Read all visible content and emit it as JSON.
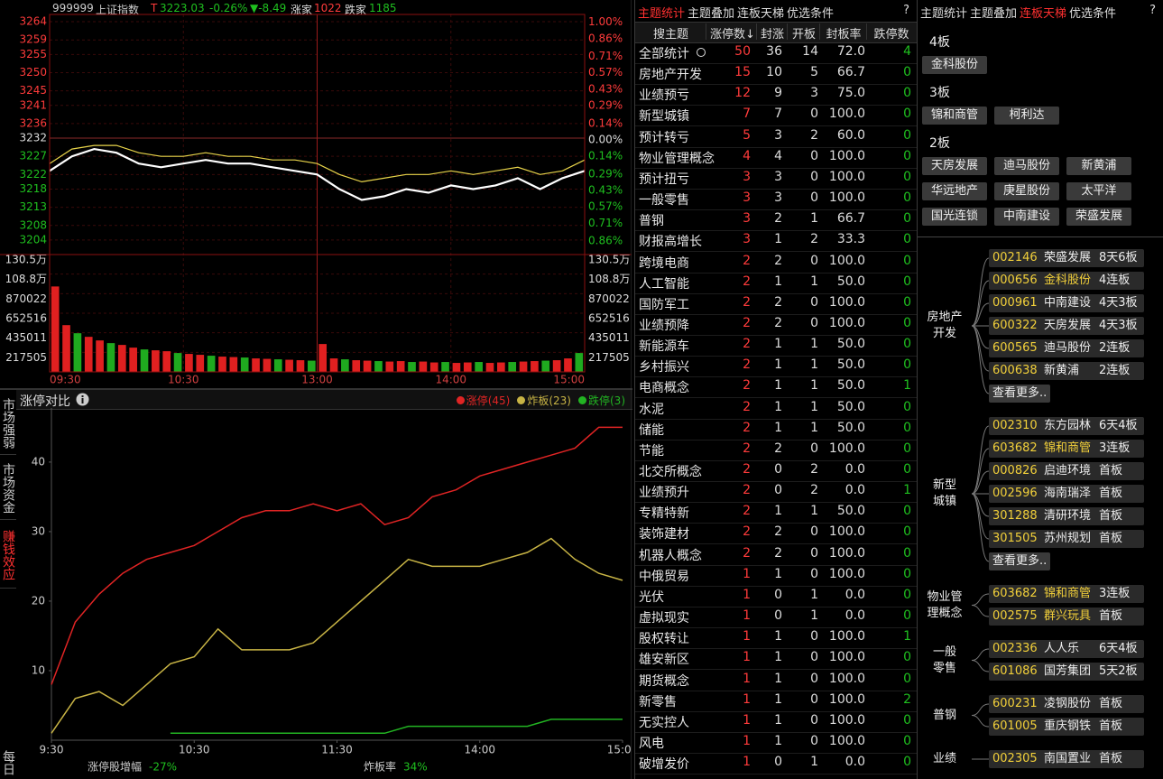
{
  "intraday": {
    "type": "line",
    "code": "999999",
    "name": "上证指数",
    "flag": "T",
    "price": "3223.03",
    "change_pct": "-0.26%",
    "change": "▼-8.49",
    "up_label": "涨家",
    "up_count": "1022",
    "down_label": "跌家",
    "down_count": "1185",
    "x": [
      0,
      10,
      20,
      30,
      40,
      50,
      60,
      70,
      80,
      90,
      100,
      110,
      120,
      130,
      140,
      150,
      160,
      170,
      180,
      190,
      200,
      210,
      220,
      230,
      240
    ],
    "xlim": [
      0,
      240
    ],
    "xticks": [
      {
        "value": 0,
        "label": "09:30"
      },
      {
        "value": 60,
        "label": "10:30"
      },
      {
        "value": 120,
        "label": "13:00"
      },
      {
        "value": 180,
        "label": "14:00"
      },
      {
        "value": 240,
        "label": "15:00"
      }
    ],
    "ylim": [
      3200,
      3266
    ],
    "yticks": [
      3264,
      3259,
      3255,
      3250,
      3245,
      3241,
      3236,
      3232,
      3227,
      3222,
      3218,
      3213,
      3208,
      3204
    ],
    "y2lim": [
      -0.975,
      1.067
    ],
    "y2ticks": [
      {
        "value": 1.0,
        "label": "1.00%"
      },
      {
        "value": 0.86,
        "label": "0.86%"
      },
      {
        "value": 0.71,
        "label": "0.71%"
      },
      {
        "value": 0.57,
        "label": "0.57%"
      },
      {
        "value": 0.43,
        "label": "0.43%"
      },
      {
        "value": 0.29,
        "label": "0.29%"
      },
      {
        "value": 0.14,
        "label": "0.14%"
      },
      {
        "value": 0,
        "label": "0.00%"
      },
      {
        "value": -0.14,
        "label": "0.14%"
      },
      {
        "value": -0.29,
        "label": "0.29%"
      },
      {
        "value": -0.43,
        "label": "0.43%"
      },
      {
        "value": -0.57,
        "label": "0.57%"
      },
      {
        "value": -0.71,
        "label": "0.71%"
      },
      {
        "value": -0.86,
        "label": "0.86%"
      }
    ],
    "series": [
      {
        "color": "#ffffff",
        "values": [
          3223,
          3227,
          3229,
          3228,
          3225,
          3224,
          3225,
          3226,
          3225,
          3225,
          3224,
          3223,
          3222,
          3218,
          3215,
          3216,
          3218,
          3217,
          3219,
          3218,
          3219,
          3221,
          3218,
          3221,
          3223
        ]
      },
      {
        "color": "#e8d44a",
        "values": [
          3225,
          3229,
          3230,
          3230,
          3228,
          3227,
          3227,
          3228,
          3227,
          3227,
          3226,
          3226,
          3225,
          3222,
          3220,
          3221,
          3222,
          3222,
          3223,
          3222,
          3223,
          3224,
          3222,
          3223,
          3226
        ]
      }
    ],
    "volume": {
      "type": "bar",
      "colors": [
        "#e02020",
        "#e02020",
        "#1faa1f"
      ],
      "values": [
        950000,
        520000,
        430000,
        390000,
        350000,
        320000,
        300000,
        270000,
        250000,
        240000,
        230000,
        210000,
        200000,
        190000,
        180000,
        170000,
        165000,
        160000,
        150000,
        145000,
        140000,
        135000,
        130000,
        125000,
        310000,
        150000,
        140000,
        130000,
        125000,
        120000,
        115000,
        120000,
        110000,
        115000,
        105000,
        110000,
        100000,
        105000,
        110000,
        100000,
        105000,
        110000,
        115000,
        120000,
        125000,
        130000,
        150000,
        210000
      ],
      "ylim": [
        0,
        1305030
      ],
      "yticks": [
        {
          "value": 1305030,
          "label": "130.5万"
        },
        {
          "value": 1087525,
          "label": "108.8万"
        },
        870022,
        652516,
        435011,
        217505
      ]
    }
  },
  "side_tabs": {
    "items": [
      "市场强弱",
      "市场资金",
      "赚钱效应",
      "每日"
    ],
    "active": 2
  },
  "limit_chart": {
    "type": "line",
    "title": "涨停对比",
    "x": [
      0,
      10,
      20,
      30,
      40,
      50,
      60,
      70,
      80,
      90,
      100,
      110,
      120,
      130,
      140,
      150,
      160,
      170,
      180,
      190,
      200,
      210,
      220,
      230,
      240
    ],
    "xlim": [
      0,
      240
    ],
    "xticks": [
      {
        "value": 0,
        "label": "9:30"
      },
      {
        "value": 60,
        "label": "10:30"
      },
      {
        "value": 120,
        "label": "11:30"
      },
      {
        "value": 180,
        "label": "14:00"
      },
      {
        "value": 240,
        "label": "15:00"
      }
    ],
    "ylim": [
      0,
      47
    ],
    "yticks": [
      10,
      20,
      30,
      40
    ],
    "series": [
      {
        "name": "涨停(45)",
        "color": "#e02424",
        "values": [
          8,
          17,
          21,
          24,
          26,
          27,
          28,
          30,
          32,
          33,
          33,
          34,
          33,
          34,
          31,
          32,
          35,
          36,
          38,
          39,
          40,
          41,
          42,
          45,
          45
        ]
      },
      {
        "name": "炸板(23)",
        "color": "#c8b445",
        "values": [
          1,
          6,
          7,
          5,
          8,
          11,
          12,
          16,
          13,
          13,
          13,
          14,
          17,
          20,
          23,
          26,
          25,
          25,
          25,
          26,
          27,
          29,
          26,
          24,
          23
        ]
      },
      {
        "name": "跌停(3)",
        "color": "#22b422",
        "values": [
          null,
          null,
          null,
          null,
          null,
          1,
          1,
          1,
          1,
          1,
          1,
          1,
          1,
          1,
          1,
          2,
          2,
          2,
          2,
          2,
          2,
          3,
          3,
          3,
          3
        ]
      }
    ],
    "footer": [
      {
        "label": "涨停股增幅",
        "value": "-27%"
      },
      {
        "label": "炸板率",
        "value": "34%"
      }
    ]
  },
  "table": {
    "tabs": [
      "主题统计",
      "主题叠加",
      "连板天梯",
      "优选条件"
    ],
    "active": 0,
    "help": "?",
    "header": [
      "搜主题",
      "涨停数↓",
      "封涨",
      "开板",
      "封板率",
      "跌停数"
    ],
    "rows": [
      [
        "全部统计",
        "50",
        "36",
        "14",
        "72.0",
        "4"
      ],
      [
        "房地产开发",
        "15",
        "10",
        "5",
        "66.7",
        "0"
      ],
      [
        "业绩预亏",
        "12",
        "9",
        "3",
        "75.0",
        "0"
      ],
      [
        "新型城镇",
        "7",
        "7",
        "0",
        "100.0",
        "0"
      ],
      [
        "预计转亏",
        "5",
        "3",
        "2",
        "60.0",
        "0"
      ],
      [
        "物业管理概念",
        "4",
        "4",
        "0",
        "100.0",
        "0"
      ],
      [
        "预计扭亏",
        "3",
        "3",
        "0",
        "100.0",
        "0"
      ],
      [
        "一般零售",
        "3",
        "3",
        "0",
        "100.0",
        "0"
      ],
      [
        "普钢",
        "3",
        "2",
        "1",
        "66.7",
        "0"
      ],
      [
        "财报高增长",
        "3",
        "1",
        "2",
        "33.3",
        "0"
      ],
      [
        "跨境电商",
        "2",
        "2",
        "0",
        "100.0",
        "0"
      ],
      [
        "人工智能",
        "2",
        "1",
        "1",
        "50.0",
        "0"
      ],
      [
        "国防军工",
        "2",
        "2",
        "0",
        "100.0",
        "0"
      ],
      [
        "业绩预降",
        "2",
        "2",
        "0",
        "100.0",
        "0"
      ],
      [
        "新能源车",
        "2",
        "1",
        "1",
        "50.0",
        "0"
      ],
      [
        "乡村振兴",
        "2",
        "1",
        "1",
        "50.0",
        "0"
      ],
      [
        "电商概念",
        "2",
        "1",
        "1",
        "50.0",
        "1"
      ],
      [
        "水泥",
        "2",
        "1",
        "1",
        "50.0",
        "0"
      ],
      [
        "储能",
        "2",
        "1",
        "1",
        "50.0",
        "0"
      ],
      [
        "节能",
        "2",
        "2",
        "0",
        "100.0",
        "0"
      ],
      [
        "北交所概念",
        "2",
        "0",
        "2",
        "0.0",
        "0"
      ],
      [
        "业绩预升",
        "2",
        "0",
        "2",
        "0.0",
        "1"
      ],
      [
        "专精特新",
        "2",
        "1",
        "1",
        "50.0",
        "0"
      ],
      [
        "装饰建材",
        "2",
        "2",
        "0",
        "100.0",
        "0"
      ],
      [
        "机器人概念",
        "2",
        "2",
        "0",
        "100.0",
        "0"
      ],
      [
        "中俄贸易",
        "1",
        "1",
        "0",
        "100.0",
        "0"
      ],
      [
        "光伏",
        "1",
        "0",
        "1",
        "0.0",
        "0"
      ],
      [
        "虚拟现实",
        "1",
        "0",
        "1",
        "0.0",
        "0"
      ],
      [
        "股权转让",
        "1",
        "1",
        "0",
        "100.0",
        "1"
      ],
      [
        "雄安新区",
        "1",
        "1",
        "0",
        "100.0",
        "0"
      ],
      [
        "期货概念",
        "1",
        "1",
        "0",
        "100.0",
        "0"
      ],
      [
        "新零售",
        "1",
        "1",
        "0",
        "100.0",
        "2"
      ],
      [
        "无实控人",
        "1",
        "1",
        "0",
        "100.0",
        "0"
      ],
      [
        "风电",
        "1",
        "1",
        "0",
        "100.0",
        "0"
      ],
      [
        "破增发价",
        "1",
        "0",
        "1",
        "0.0",
        "0"
      ]
    ]
  },
  "ladder": {
    "tabs": [
      "主题统计",
      "主题叠加",
      "连板天梯",
      "优选条件"
    ],
    "active": 2,
    "help": "?",
    "levels": [
      {
        "label": "4板",
        "stocks": [
          "金科股份"
        ]
      },
      {
        "label": "3板",
        "stocks": [
          "锦和商管",
          "柯利达"
        ]
      },
      {
        "label": "2板",
        "stocks": [
          "天房发展",
          "迪马股份",
          "新黄浦",
          "华远地产",
          "庚星股份",
          "太平洋",
          "国光连锁",
          "中南建设",
          "荣盛发展"
        ]
      }
    ],
    "groups": [
      {
        "name": "房地产\n开发",
        "more": "查看更多..",
        "items": [
          {
            "code": "002146",
            "name": "荣盛发展",
            "tag": "8天6板",
            "hl": false
          },
          {
            "code": "000656",
            "name": "金科股份",
            "tag": "4连板",
            "hl": true
          },
          {
            "code": "000961",
            "name": "中南建设",
            "tag": "4天3板",
            "hl": false
          },
          {
            "code": "600322",
            "name": "天房发展",
            "tag": "4天3板",
            "hl": false
          },
          {
            "code": "600565",
            "name": "迪马股份",
            "tag": "2连板",
            "hl": false
          },
          {
            "code": "600638",
            "name": "新黄浦",
            "tag": "2连板",
            "hl": false
          }
        ]
      },
      {
        "name": "新型\n城镇",
        "more": "查看更多..",
        "items": [
          {
            "code": "002310",
            "name": "东方园林",
            "tag": "6天4板",
            "hl": false
          },
          {
            "code": "603682",
            "name": "锦和商管",
            "tag": "3连板",
            "hl": true
          },
          {
            "code": "000826",
            "name": "启迪环境",
            "tag": "首板",
            "hl": false
          },
          {
            "code": "002596",
            "name": "海南瑞泽",
            "tag": "首板",
            "hl": false
          },
          {
            "code": "301288",
            "name": "清研环境",
            "tag": "首板",
            "hl": false
          },
          {
            "code": "301505",
            "name": "苏州规划",
            "tag": "首板",
            "hl": false
          }
        ]
      },
      {
        "name": "物业管\n理概念",
        "items": [
          {
            "code": "603682",
            "name": "锦和商管",
            "tag": "3连板",
            "hl": true
          },
          {
            "code": "002575",
            "name": "群兴玩具",
            "tag": "首板",
            "hl": true
          }
        ]
      },
      {
        "name": "一般\n零售",
        "items": [
          {
            "code": "002336",
            "name": "人人乐",
            "tag": "6天4板",
            "hl": false
          },
          {
            "code": "601086",
            "name": "国芳集团",
            "tag": "5天2板",
            "hl": false
          }
        ]
      },
      {
        "name": "普钢",
        "items": [
          {
            "code": "600231",
            "name": "凌钢股份",
            "tag": "首板",
            "hl": false
          },
          {
            "code": "601005",
            "name": "重庆钢铁",
            "tag": "首板",
            "hl": false
          }
        ]
      },
      {
        "name": "业绩",
        "items": [
          {
            "code": "002305",
            "name": "南国置业",
            "tag": "首板",
            "hl": false
          }
        ]
      }
    ]
  }
}
